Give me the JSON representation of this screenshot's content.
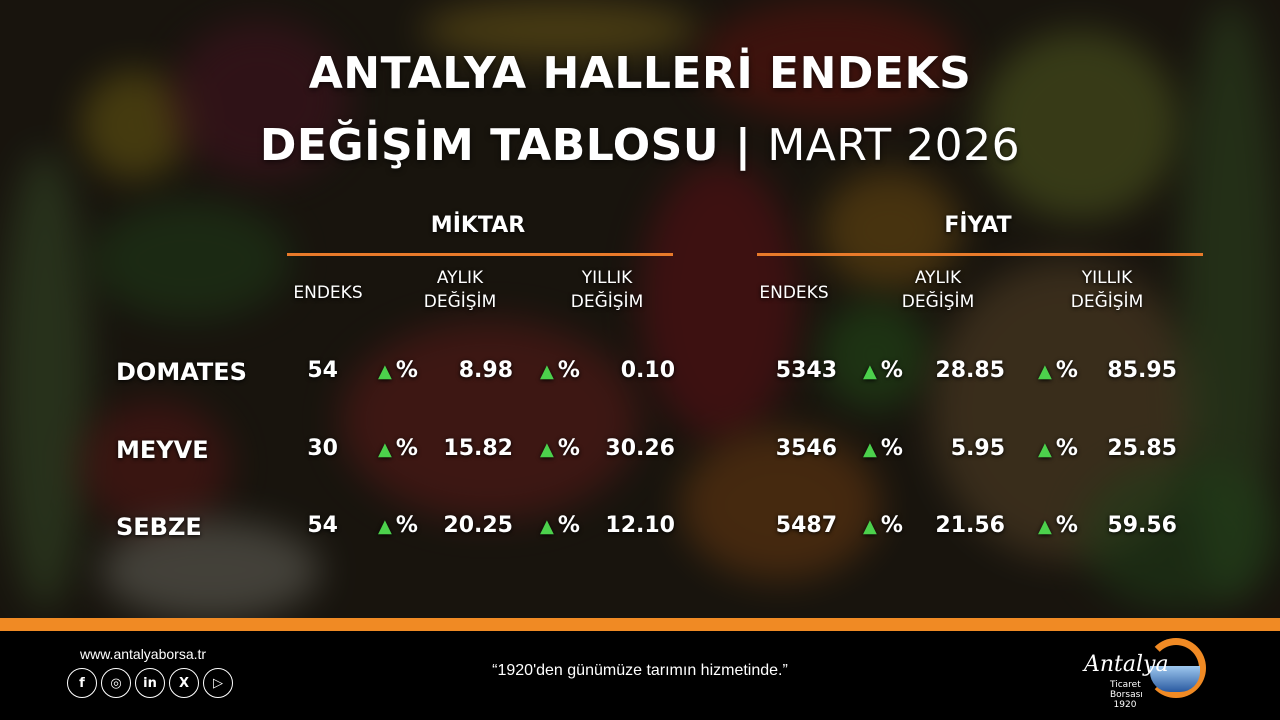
{
  "title": {
    "line1": "ANTALYA HALLERİ ENDEKS",
    "line2_bold": "DEĞİŞİM TABLOSU |",
    "line2_thin": "MART 2026"
  },
  "sections": {
    "miktar": "MİKTAR",
    "fiyat": "FİYAT"
  },
  "columns": {
    "endeks": "ENDEKS",
    "aylik_1": "AYLIK",
    "aylik_2": "DEĞİŞİM",
    "yillik_1": "YILLIK",
    "yillik_2": "DEĞİŞİM"
  },
  "change_symbol": "%",
  "arrow": "▲",
  "up_color": "#4cd14c",
  "accent_color": "#f08a24",
  "rows": [
    {
      "label": "DOMATES",
      "miktar": {
        "endeks": "54",
        "aylik": "8.98",
        "yillik": "0.10"
      },
      "fiyat": {
        "endeks": "5343",
        "aylik": "28.85",
        "yillik": "85.95"
      }
    },
    {
      "label": "MEYVE",
      "miktar": {
        "endeks": "30",
        "aylik": "15.82",
        "yillik": "30.26"
      },
      "fiyat": {
        "endeks": "3546",
        "aylik": "5.95",
        "yillik": "25.85"
      }
    },
    {
      "label": "SEBZE",
      "miktar": {
        "endeks": "54",
        "aylik": "20.25",
        "yillik": "12.10"
      },
      "fiyat": {
        "endeks": "5487",
        "aylik": "21.56",
        "yillik": "59.56"
      }
    }
  ],
  "footer": {
    "website": "www.antalyaborsa.tr",
    "slogan": "“1920'den günümüze tarımın hizmetinde.”",
    "social_icons": [
      "facebook-icon",
      "instagram-icon",
      "linkedin-icon",
      "x-icon",
      "youtube-icon"
    ],
    "logo": {
      "name": "Antalya",
      "sub1": "Ticaret",
      "sub2": "Borsası",
      "year": "1920"
    }
  }
}
